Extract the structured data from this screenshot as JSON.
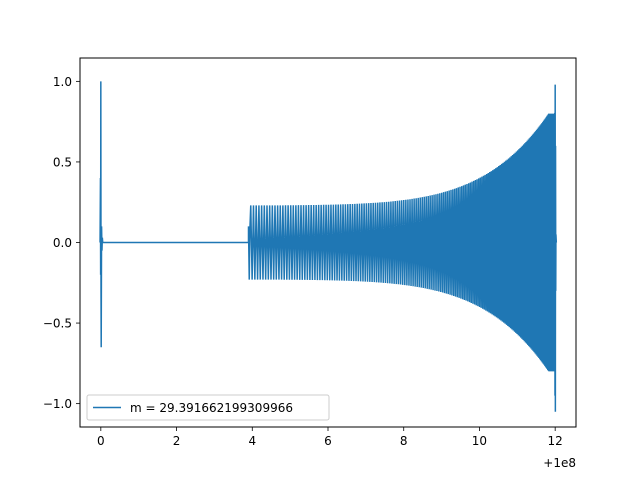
{
  "chart_data": {
    "type": "line",
    "title": "",
    "xlabel": "",
    "ylabel": "",
    "x_offset_label": "+1e8",
    "xlim": [
      -0.55,
      12.55
    ],
    "ylim": [
      -1.145,
      1.145
    ],
    "x_ticks": [
      0,
      2,
      4,
      6,
      8,
      10,
      12
    ],
    "x_tick_labels": [
      "0",
      "2",
      "4",
      "6",
      "8",
      "10",
      "12"
    ],
    "y_ticks": [
      1.0,
      0.5,
      0.0,
      -0.5,
      -1.0
    ],
    "y_tick_labels": [
      "1.0",
      "0.5",
      "0.0",
      "−0.5",
      "−1.0"
    ],
    "grid": false,
    "legend_position": "lower-left",
    "series": [
      {
        "name": "m = 29.391662199309966",
        "color": "#1f77b4",
        "description_points": {
          "initial_spike": {
            "x": 0.0,
            "max": 1.0,
            "min": -0.65
          },
          "flat_segment": {
            "x_start": 0.05,
            "x_end": 3.9,
            "y": 0.0
          },
          "wave_train": {
            "x_start": 3.9,
            "x_end": 12.0,
            "amplitude_start": 0.23,
            "amplitude_end": 0.8
          },
          "final_spike": {
            "x": 12.0,
            "max": 0.98,
            "min": -1.05
          }
        }
      }
    ]
  }
}
